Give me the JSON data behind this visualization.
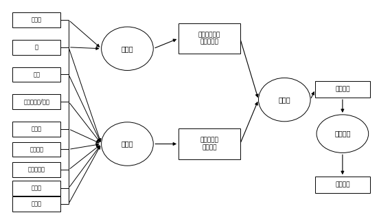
{
  "bg_color": "#ffffff",
  "box_facecolor": "#ffffff",
  "ellipse_facecolor": "#ffffff",
  "edge_color": "#000000",
  "left_labels": [
    "发泡剂",
    "水",
    "水泥",
    "聚合物胶粉/乳液",
    "填充料",
    "纤维材料",
    "保水增稠剂",
    "疏水剂",
    "憎水剂"
  ],
  "foamer_label": "发泡机",
  "mixer_label": "搅拌机",
  "foam_output_label": "细腻、均匀、\n稳定的泡沫",
  "polymer_output_label": "聚合物改性\n水泥料浆",
  "mixer2_label": "混料机",
  "slurry_label": "泡沫料浆",
  "filler_label": "填缝设备",
  "seam_label": "上墙填缝"
}
